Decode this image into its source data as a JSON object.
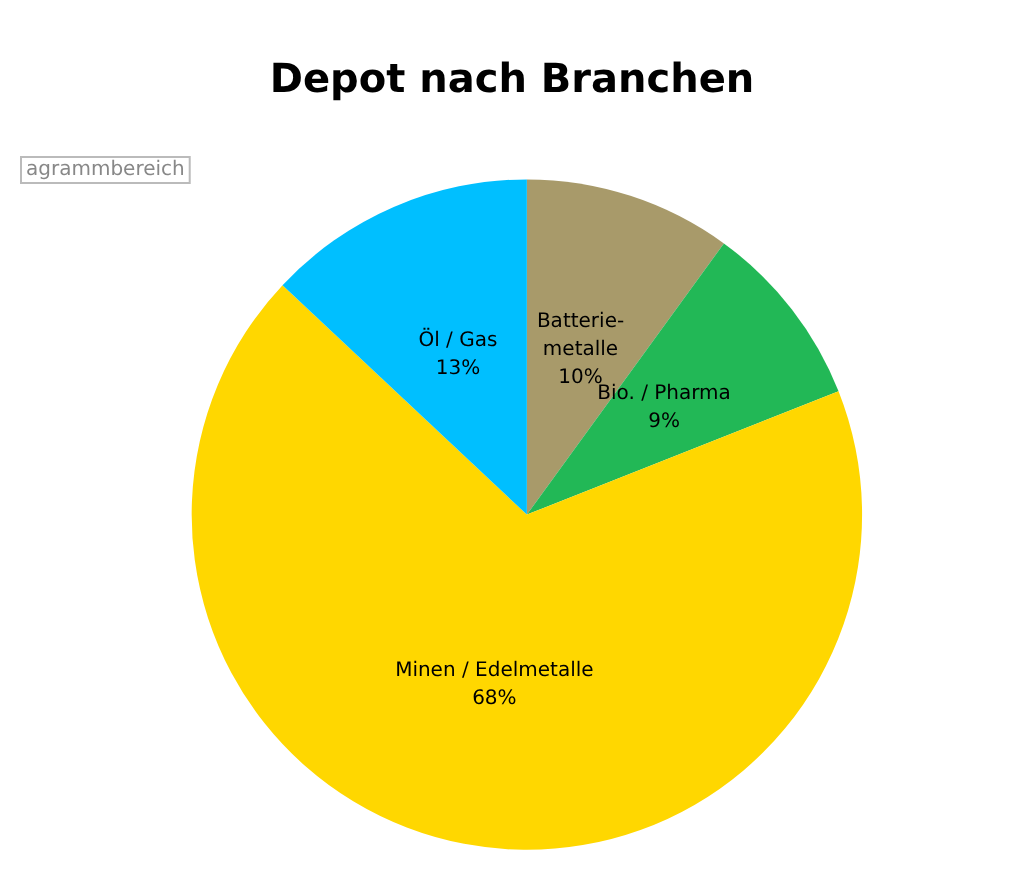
{
  "chart_data": {
    "type": "pie",
    "title": "Depot nach Branchen",
    "categories": [
      "Batterie-\nmetalle",
      "Bio. / Pharma",
      "Minen / Edelmetalle",
      "Öl / Gas"
    ],
    "values": [
      10,
      9,
      68,
      13
    ],
    "colors": [
      "#a89a6a",
      "#22b856",
      "#ffd700",
      "#00bfff"
    ],
    "value_labels": [
      "10%",
      "9%",
      "68%",
      "13%"
    ],
    "legend": false,
    "annotations": [
      "agrammbereich"
    ]
  }
}
